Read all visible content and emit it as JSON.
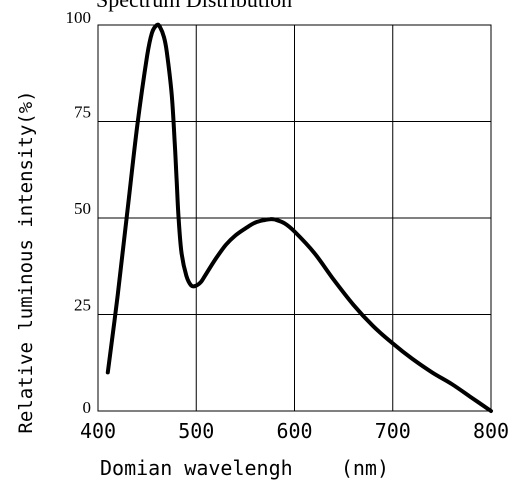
{
  "chart_data": {
    "type": "line",
    "title": "Spectrum Distribution",
    "xlabel": "Domian wavelengh    (nm)",
    "ylabel": "Relative luminous intensity(%)",
    "xlim": [
      400,
      800
    ],
    "ylim": [
      0,
      100
    ],
    "grid": true,
    "x_ticks": [
      "400",
      "500",
      "600",
      "700",
      "800"
    ],
    "y_ticks": [
      "0",
      "25",
      "50",
      "75",
      "100"
    ],
    "series": [
      {
        "color": "#000000",
        "x": [
          410,
          420,
          430,
          440,
          450,
          455,
          460,
          463,
          467,
          470,
          475,
          478,
          480,
          482,
          485,
          490,
          495,
          500,
          505,
          510,
          520,
          530,
          540,
          550,
          560,
          570,
          575,
          580,
          590,
          600,
          620,
          640,
          660,
          680,
          700,
          720,
          740,
          760,
          780,
          800
        ],
        "y": [
          10,
          30,
          52,
          74,
          92,
          98,
          100,
          99.5,
          97,
          93,
          82,
          70,
          60,
          50,
          41,
          35,
          32.5,
          32.5,
          33.5,
          35.5,
          39.5,
          43,
          45.5,
          47.3,
          48.8,
          49.5,
          49.7,
          49.6,
          48.6,
          46.5,
          41,
          34,
          27.5,
          22,
          17.5,
          13.5,
          10,
          7,
          3.5,
          0
        ]
      }
    ]
  }
}
